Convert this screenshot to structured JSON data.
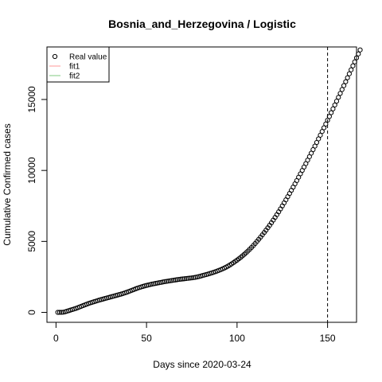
{
  "chart_data": {
    "type": "scatter",
    "title": "Bosnia_and_Herzegovina / Logistic",
    "xlabel": "Days since 2020-03-24",
    "ylabel": "Cumulative Confirmed cases",
    "xlim": [
      -5,
      166
    ],
    "ylim": [
      -700,
      18700
    ],
    "x_ticks": [
      0,
      50,
      100,
      150
    ],
    "y_ticks": [
      0,
      5000,
      10000,
      15000
    ],
    "vline": {
      "x": 150,
      "style": "dashed"
    },
    "legend": {
      "position": "top-left",
      "entries": [
        {
          "label": "Real value",
          "marker": "circle",
          "color": "#000000"
        },
        {
          "label": "fit1",
          "marker": "line",
          "color": "#ff9999"
        },
        {
          "label": "fit2",
          "marker": "line",
          "color": "#80c880"
        }
      ]
    },
    "series": [
      {
        "name": "Real value",
        "points": [
          [
            1,
            1
          ],
          [
            2,
            3
          ],
          [
            3,
            5
          ],
          [
            4,
            10
          ],
          [
            5,
            40
          ],
          [
            6,
            80
          ],
          [
            7,
            120
          ],
          [
            8,
            160
          ],
          [
            9,
            200
          ],
          [
            10,
            240
          ],
          [
            11,
            280
          ],
          [
            12,
            330
          ],
          [
            13,
            380
          ],
          [
            14,
            430
          ],
          [
            15,
            480
          ],
          [
            16,
            530
          ],
          [
            17,
            580
          ],
          [
            18,
            625
          ],
          [
            19,
            670
          ],
          [
            20,
            710
          ],
          [
            21,
            750
          ],
          [
            22,
            790
          ],
          [
            23,
            830
          ],
          [
            24,
            870
          ],
          [
            25,
            905
          ],
          [
            26,
            940
          ],
          [
            27,
            975
          ],
          [
            28,
            1010
          ],
          [
            29,
            1045
          ],
          [
            30,
            1080
          ],
          [
            31,
            1115
          ],
          [
            32,
            1150
          ],
          [
            33,
            1185
          ],
          [
            34,
            1220
          ],
          [
            35,
            1255
          ],
          [
            36,
            1290
          ],
          [
            37,
            1330
          ],
          [
            38,
            1370
          ],
          [
            39,
            1415
          ],
          [
            40,
            1460
          ],
          [
            41,
            1510
          ],
          [
            42,
            1560
          ],
          [
            43,
            1610
          ],
          [
            44,
            1660
          ],
          [
            45,
            1705
          ],
          [
            46,
            1750
          ],
          [
            47,
            1790
          ],
          [
            48,
            1830
          ],
          [
            49,
            1865
          ],
          [
            50,
            1900
          ],
          [
            51,
            1930
          ],
          [
            52,
            1960
          ],
          [
            53,
            1990
          ],
          [
            54,
            2015
          ],
          [
            55,
            2040
          ],
          [
            56,
            2065
          ],
          [
            57,
            2090
          ],
          [
            58,
            2115
          ],
          [
            59,
            2140
          ],
          [
            60,
            2165
          ],
          [
            61,
            2185
          ],
          [
            62,
            2205
          ],
          [
            63,
            2225
          ],
          [
            64,
            2245
          ],
          [
            65,
            2265
          ],
          [
            66,
            2285
          ],
          [
            67,
            2305
          ],
          [
            68,
            2325
          ],
          [
            69,
            2340
          ],
          [
            70,
            2355
          ],
          [
            71,
            2370
          ],
          [
            72,
            2385
          ],
          [
            73,
            2400
          ],
          [
            74,
            2415
          ],
          [
            75,
            2430
          ],
          [
            76,
            2450
          ],
          [
            77,
            2470
          ],
          [
            78,
            2495
          ],
          [
            79,
            2525
          ],
          [
            80,
            2560
          ],
          [
            81,
            2595
          ],
          [
            82,
            2630
          ],
          [
            83,
            2665
          ],
          [
            84,
            2700
          ],
          [
            85,
            2740
          ],
          [
            86,
            2780
          ],
          [
            87,
            2820
          ],
          [
            88,
            2865
          ],
          [
            89,
            2910
          ],
          [
            90,
            2960
          ],
          [
            91,
            3010
          ],
          [
            92,
            3065
          ],
          [
            93,
            3125
          ],
          [
            94,
            3190
          ],
          [
            95,
            3260
          ],
          [
            96,
            3335
          ],
          [
            97,
            3415
          ],
          [
            98,
            3500
          ],
          [
            99,
            3590
          ],
          [
            100,
            3680
          ],
          [
            101,
            3775
          ],
          [
            102,
            3875
          ],
          [
            103,
            3980
          ],
          [
            104,
            4090
          ],
          [
            105,
            4200
          ],
          [
            106,
            4320
          ],
          [
            107,
            4445
          ],
          [
            108,
            4575
          ],
          [
            109,
            4710
          ],
          [
            110,
            4850
          ],
          [
            111,
            5000
          ],
          [
            112,
            5150
          ],
          [
            113,
            5305
          ],
          [
            114,
            5465
          ],
          [
            115,
            5625
          ],
          [
            116,
            5790
          ],
          [
            117,
            5960
          ],
          [
            118,
            6135
          ],
          [
            119,
            6315
          ],
          [
            120,
            6500
          ],
          [
            121,
            6690
          ],
          [
            122,
            6885
          ],
          [
            123,
            7085
          ],
          [
            124,
            7290
          ],
          [
            125,
            7500
          ],
          [
            126,
            7715
          ],
          [
            127,
            7930
          ],
          [
            128,
            8150
          ],
          [
            129,
            8375
          ],
          [
            130,
            8600
          ],
          [
            131,
            8825
          ],
          [
            132,
            9055
          ],
          [
            133,
            9285
          ],
          [
            134,
            9520
          ],
          [
            135,
            9760
          ],
          [
            136,
            10000
          ],
          [
            137,
            10240
          ],
          [
            138,
            10480
          ],
          [
            139,
            10725
          ],
          [
            140,
            10970
          ],
          [
            141,
            11215
          ],
          [
            142,
            11465
          ],
          [
            143,
            11715
          ],
          [
            144,
            11970
          ],
          [
            145,
            12225
          ],
          [
            146,
            12485
          ],
          [
            147,
            12745
          ],
          [
            148,
            13005
          ],
          [
            149,
            13270
          ],
          [
            150,
            13535
          ],
          [
            151,
            13800
          ],
          [
            152,
            14070
          ],
          [
            153,
            14340
          ],
          [
            154,
            14610
          ],
          [
            155,
            14880
          ],
          [
            156,
            15150
          ],
          [
            157,
            15425
          ],
          [
            158,
            15700
          ],
          [
            159,
            15975
          ],
          [
            160,
            16250
          ],
          [
            161,
            16530
          ],
          [
            162,
            16810
          ],
          [
            163,
            17090
          ],
          [
            164,
            17370
          ],
          [
            165,
            17650
          ],
          [
            166,
            17930
          ],
          [
            167,
            18210
          ],
          [
            168,
            18490
          ]
        ]
      }
    ]
  }
}
